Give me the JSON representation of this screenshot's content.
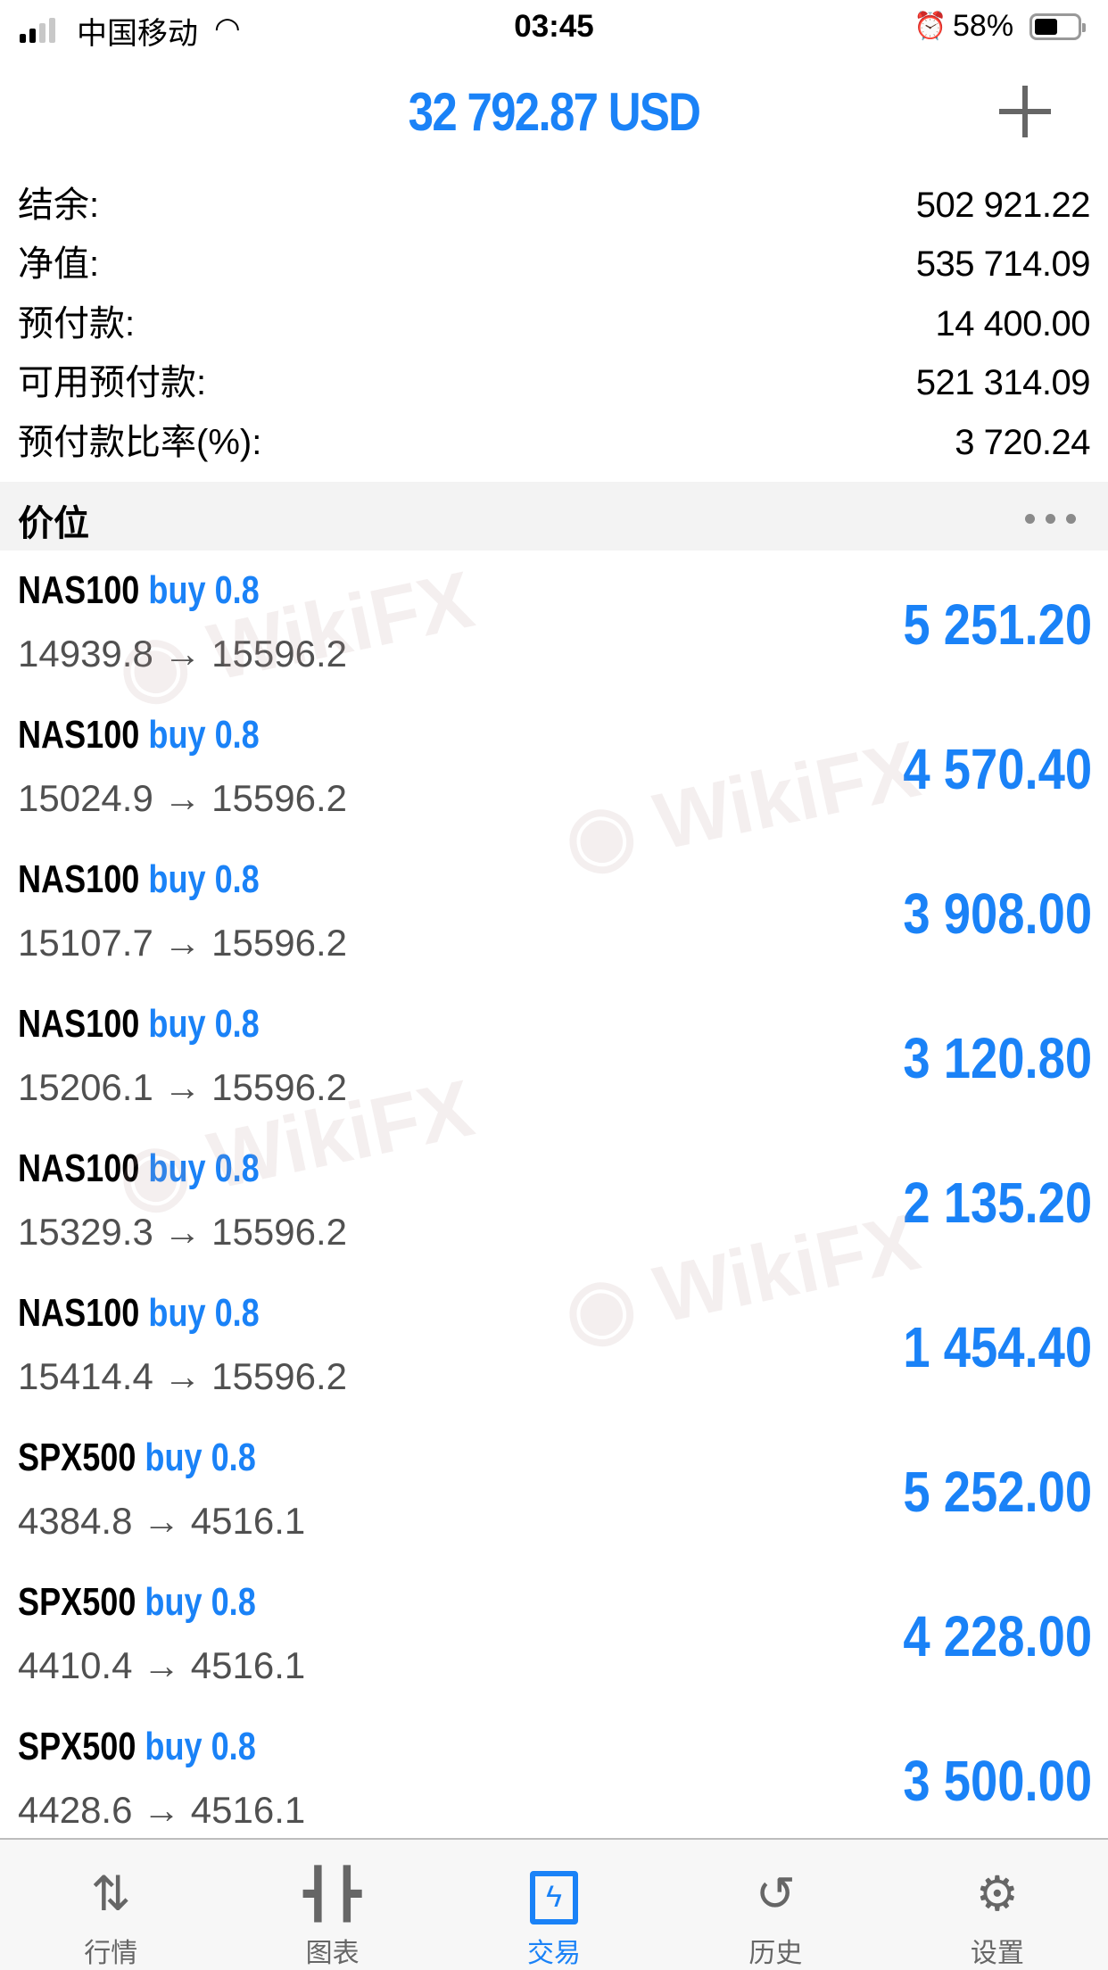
{
  "status_bar": {
    "carrier": "中国移动",
    "time": "03:45",
    "battery_pct": "58%",
    "battery_level": 0.58
  },
  "header": {
    "title": "32 792.87 USD",
    "add_icon": "plus-icon"
  },
  "summary": [
    {
      "label": "结余:",
      "value": "502 921.22"
    },
    {
      "label": "净值:",
      "value": "535 714.09"
    },
    {
      "label": "预付款:",
      "value": "14 400.00"
    },
    {
      "label": "可用预付款:",
      "value": "521 314.09"
    },
    {
      "label": "预付款比率(%):",
      "value": "3 720.24"
    }
  ],
  "section": {
    "title": "价位",
    "more_icon": "ellipsis-icon"
  },
  "positions": [
    {
      "symbol": "NAS100",
      "side": "buy 0.8",
      "prices": "14939.8 → 15596.2",
      "profit": "5 251.20"
    },
    {
      "symbol": "NAS100",
      "side": "buy 0.8",
      "prices": "15024.9 → 15596.2",
      "profit": "4 570.40"
    },
    {
      "symbol": "NAS100",
      "side": "buy 0.8",
      "prices": "15107.7 → 15596.2",
      "profit": "3 908.00"
    },
    {
      "symbol": "NAS100",
      "side": "buy 0.8",
      "prices": "15206.1 → 15596.2",
      "profit": "3 120.80"
    },
    {
      "symbol": "NAS100",
      "side": "buy 0.8",
      "prices": "15329.3 → 15596.2",
      "profit": "2 135.20"
    },
    {
      "symbol": "NAS100",
      "side": "buy 0.8",
      "prices": "15414.4 → 15596.2",
      "profit": "1 454.40"
    },
    {
      "symbol": "SPX500",
      "side": "buy 0.8",
      "prices": "4384.8 → 4516.1",
      "profit": "5 252.00"
    },
    {
      "symbol": "SPX500",
      "side": "buy 0.8",
      "prices": "4410.4 → 4516.1",
      "profit": "4 228.00"
    },
    {
      "symbol": "SPX500",
      "side": "buy 0.8",
      "prices": "4428.6 → 4516.1",
      "profit": "3 500.00"
    }
  ],
  "watermark": "WikiFX",
  "tabs": [
    {
      "label": "行情",
      "icon": "arrows-updown-icon"
    },
    {
      "label": "图表",
      "icon": "candlestick-icon"
    },
    {
      "label": "交易",
      "icon": "trade-chart-icon",
      "active": true
    },
    {
      "label": "历史",
      "icon": "history-icon"
    },
    {
      "label": "设置",
      "icon": "gear-icon"
    }
  ],
  "colors": {
    "accent": "#1a82f7",
    "text": "#000000",
    "secondary": "#505050",
    "tabbar_bg": "#f7f7f7"
  }
}
